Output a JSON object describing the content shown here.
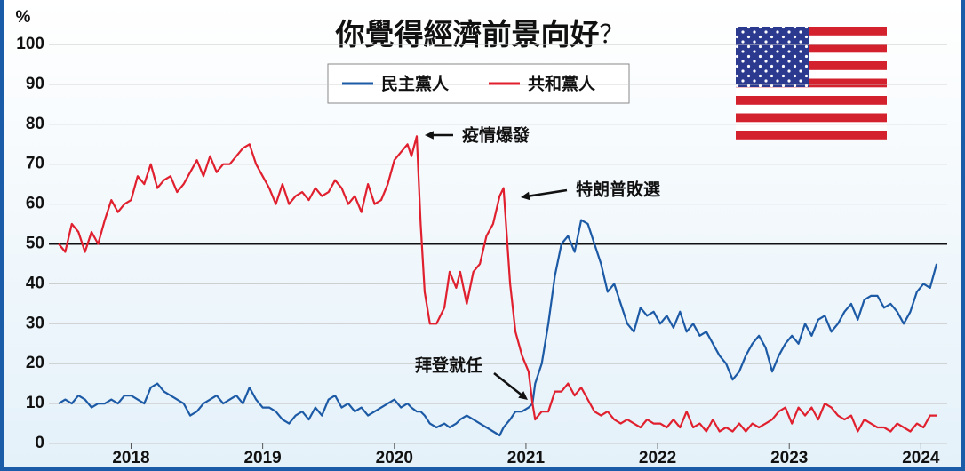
{
  "chart_data": {
    "type": "line",
    "title": "你覺得經濟前景向好",
    "title_mark": "？",
    "y_label": "%",
    "x": [
      2017.45,
      2017.5,
      2017.55,
      2017.6,
      2017.65,
      2017.7,
      2017.75,
      2017.8,
      2017.85,
      2017.9,
      2017.95,
      2018.0,
      2018.05,
      2018.1,
      2018.15,
      2018.2,
      2018.25,
      2018.3,
      2018.35,
      2018.4,
      2018.45,
      2018.5,
      2018.55,
      2018.6,
      2018.65,
      2018.7,
      2018.75,
      2018.8,
      2018.85,
      2018.9,
      2018.95,
      2019.0,
      2019.05,
      2019.1,
      2019.15,
      2019.2,
      2019.25,
      2019.3,
      2019.35,
      2019.4,
      2019.45,
      2019.5,
      2019.55,
      2019.6,
      2019.65,
      2019.7,
      2019.75,
      2019.8,
      2019.85,
      2019.9,
      2019.95,
      2020.0,
      2020.05,
      2020.1,
      2020.13,
      2020.17,
      2020.2,
      2020.23,
      2020.27,
      2020.32,
      2020.38,
      2020.42,
      2020.47,
      2020.5,
      2020.55,
      2020.6,
      2020.65,
      2020.7,
      2020.75,
      2020.8,
      2020.83,
      2020.88,
      2020.92,
      2020.97,
      2021.02,
      2021.05,
      2021.07,
      2021.12,
      2021.17,
      2021.22,
      2021.27,
      2021.32,
      2021.37,
      2021.42,
      2021.47,
      2021.52,
      2021.57,
      2021.62,
      2021.67,
      2021.72,
      2021.77,
      2021.82,
      2021.87,
      2021.92,
      2021.97,
      2022.02,
      2022.07,
      2022.12,
      2022.17,
      2022.22,
      2022.27,
      2022.32,
      2022.37,
      2022.42,
      2022.47,
      2022.52,
      2022.57,
      2022.62,
      2022.67,
      2022.72,
      2022.77,
      2022.82,
      2022.87,
      2022.92,
      2022.97,
      2023.02,
      2023.07,
      2023.12,
      2023.17,
      2023.22,
      2023.27,
      2023.32,
      2023.37,
      2023.42,
      2023.47,
      2023.52,
      2023.57,
      2023.62,
      2023.67,
      2023.72,
      2023.77,
      2023.82,
      2023.87,
      2023.92,
      2023.97,
      2024.02,
      2024.07,
      2024.12
    ],
    "series": [
      {
        "name": "民主黨人",
        "color": "#1d5aa6",
        "values": [
          10,
          11,
          10,
          12,
          11,
          9,
          10,
          10,
          11,
          10,
          12,
          12,
          11,
          10,
          14,
          15,
          13,
          12,
          11,
          10,
          7,
          8,
          10,
          11,
          12,
          10,
          11,
          12,
          10,
          14,
          11,
          9,
          9,
          8,
          6,
          5,
          7,
          8,
          6,
          9,
          7,
          11,
          12,
          9,
          10,
          8,
          9,
          7,
          8,
          9,
          10,
          11,
          9,
          10,
          9,
          8,
          8,
          7,
          5,
          4,
          5,
          4,
          5,
          6,
          7,
          6,
          5,
          4,
          3,
          2,
          4,
          6,
          8,
          8,
          9,
          10,
          15,
          20,
          30,
          42,
          50,
          52,
          48,
          56,
          55,
          50,
          45,
          38,
          40,
          35,
          30,
          28,
          34,
          32,
          33,
          30,
          32,
          29,
          33,
          28,
          30,
          27,
          28,
          25,
          22,
          20,
          16,
          18,
          22,
          25,
          27,
          24,
          18,
          22,
          25,
          27,
          25,
          30,
          27,
          31,
          32,
          28,
          30,
          33,
          35,
          31,
          36,
          37,
          37,
          34,
          35,
          33,
          30,
          33,
          38,
          40,
          39,
          45
        ]
      },
      {
        "name": "共和黨人",
        "color": "#e0202e",
        "values": [
          50,
          48,
          55,
          53,
          48,
          53,
          50,
          56,
          61,
          58,
          60,
          61,
          67,
          65,
          70,
          64,
          66,
          67,
          63,
          65,
          68,
          71,
          67,
          72,
          68,
          70,
          70,
          72,
          74,
          75,
          70,
          67,
          64,
          60,
          65,
          60,
          62,
          63,
          61,
          64,
          62,
          63,
          66,
          64,
          60,
          62,
          58,
          65,
          60,
          61,
          65,
          71,
          73,
          75,
          72,
          77,
          55,
          38,
          30,
          30,
          34,
          43,
          39,
          43,
          35,
          43,
          45,
          52,
          55,
          62,
          64,
          40,
          28,
          22,
          18,
          10,
          6,
          8,
          8,
          13,
          13,
          15,
          12,
          14,
          11,
          8,
          7,
          8,
          6,
          5,
          6,
          5,
          4,
          6,
          5,
          5,
          4,
          6,
          4,
          8,
          4,
          5,
          3,
          6,
          3,
          4,
          3,
          5,
          3,
          5,
          4,
          5,
          6,
          8,
          9,
          5,
          9,
          7,
          9,
          6,
          10,
          9,
          7,
          6,
          7,
          3,
          6,
          5,
          4,
          4,
          3,
          5,
          4,
          3,
          5,
          4,
          7,
          7
        ]
      }
    ],
    "hline": 50,
    "annotations": [
      "疫情爆發",
      "特朗普敗選",
      "拜登就任"
    ],
    "xlim": [
      2017.45,
      2024.2
    ],
    "xticks": [
      2018,
      2019,
      2020,
      2021,
      2022,
      2023,
      2024
    ],
    "ylim": [
      0,
      100
    ],
    "yticks": [
      0,
      10,
      20,
      30,
      40,
      50,
      60,
      70,
      80,
      90,
      100
    ],
    "grid": true
  }
}
